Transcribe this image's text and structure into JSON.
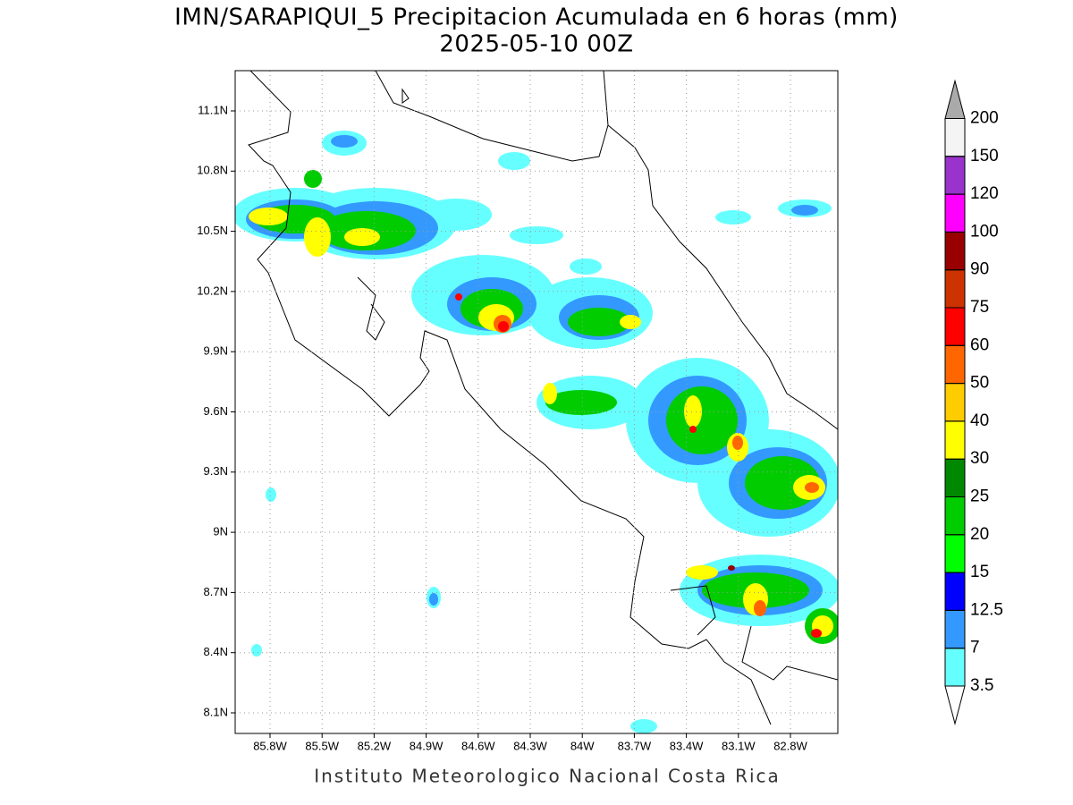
{
  "title": "IMN/SARAPIQUI_5 Precipitacion Acumulada en 6 horas (mm)",
  "subtitle": "2025-05-10 00Z",
  "map": {
    "lat_ticks": [
      "11.1N",
      "10.8N",
      "10.5N",
      "10.2N",
      "9.9N",
      "9.6N",
      "9.3N",
      "9N",
      "8.7N",
      "8.4N",
      "8.1N"
    ],
    "lon_ticks": [
      "85.8W",
      "85.5W",
      "85.2W",
      "84.9W",
      "84.6W",
      "84.3W",
      "84W",
      "83.7W",
      "83.4W",
      "83.1W",
      "82.8W"
    ]
  },
  "colorbar": {
    "levels": [
      3.5,
      7,
      12.5,
      15,
      20,
      25,
      30,
      40,
      50,
      60,
      75,
      90,
      100,
      120,
      150,
      200
    ],
    "colors": [
      "#66ffff",
      "#3399ff",
      "#0000ff",
      "#00ff00",
      "#00cc00",
      "#008800",
      "#ffff00",
      "#ffcc00",
      "#ff6600",
      "#ff0000",
      "#cc3300",
      "#990000",
      "#ff00ff",
      "#9933cc",
      "#f4f4f4"
    ],
    "under_color": "#ffffff",
    "over_color": "#aaaaaa"
  },
  "footer": "Instituto Meteorologico Nacional Costa Rica"
}
